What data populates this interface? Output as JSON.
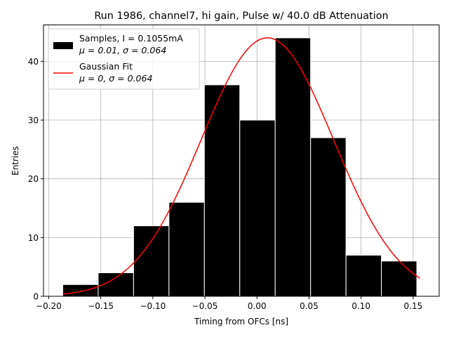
{
  "chart_data": {
    "type": "bar",
    "title": "Run 1986, channel7, hi gain, Pulse w/ 40.0 dB Attenuation",
    "xlabel": "Timing from OFCs [ns]",
    "ylabel": "Entries",
    "xlim": [
      -0.205,
      0.175
    ],
    "ylim": [
      0,
      46.2
    ],
    "grid": true,
    "legend_position": "top-left",
    "xticks": [
      -0.2,
      -0.15,
      -0.1,
      -0.05,
      0.0,
      0.05,
      0.1,
      0.15
    ],
    "xtick_labels": [
      "−0.20",
      "−0.15",
      "−0.10",
      "−0.05",
      "0.00",
      "0.05",
      "0.10",
      "0.15"
    ],
    "yticks": [
      0,
      10,
      20,
      30,
      40
    ],
    "ytick_labels": [
      "0",
      "10",
      "20",
      "30",
      "40"
    ],
    "histogram": {
      "name_line1": "Samples, I = 0.1055mA",
      "name_line2": "μ = 0.01, σ = 0.064",
      "color": "#000000",
      "edge_color": "#ffffff",
      "bin_edges": [
        -0.1865,
        -0.1525,
        -0.1185,
        -0.0845,
        -0.0505,
        -0.0165,
        0.0175,
        0.0515,
        0.0855,
        0.1195,
        0.1535
      ],
      "counts": [
        2,
        4,
        12,
        16,
        36,
        30,
        44,
        27,
        7,
        6
      ]
    },
    "fit": {
      "name_line1": "Gaussian Fit",
      "name_line2": "μ = 0, σ = 0.064",
      "color": "#ff0000",
      "mu": 0.01,
      "sigma": 0.0635,
      "amplitude": 44,
      "x_range": [
        -0.1865,
        0.1565
      ]
    }
  }
}
